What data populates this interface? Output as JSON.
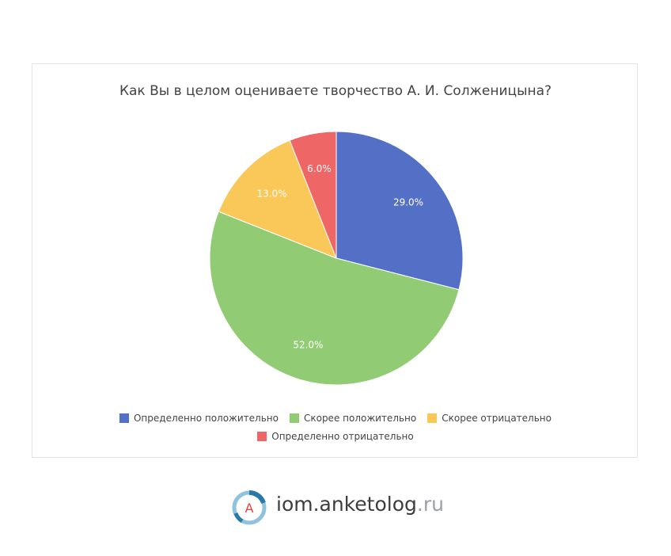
{
  "chart_data": {
    "type": "pie",
    "title": "Как Вы в целом оцениваете творчество А. И. Солженицына?",
    "slices": [
      {
        "label": "Определенно положительно",
        "value": 29.0,
        "display": "29.0%",
        "color": "#5470c6"
      },
      {
        "label": "Скорее положительно",
        "value": 52.0,
        "display": "52.0%",
        "color": "#91cc75"
      },
      {
        "label": "Скорее отрицательно",
        "value": 13.0,
        "display": "13.0%",
        "color": "#fac858"
      },
      {
        "label": "Определенно отрицательно",
        "value": 6.0,
        "display": "6.0%",
        "color": "#ee6666"
      }
    ],
    "legend_position": "bottom"
  },
  "branding": {
    "logo_letter": "A",
    "domain_main": "iom.anketolog",
    "domain_tld": ".ru"
  }
}
